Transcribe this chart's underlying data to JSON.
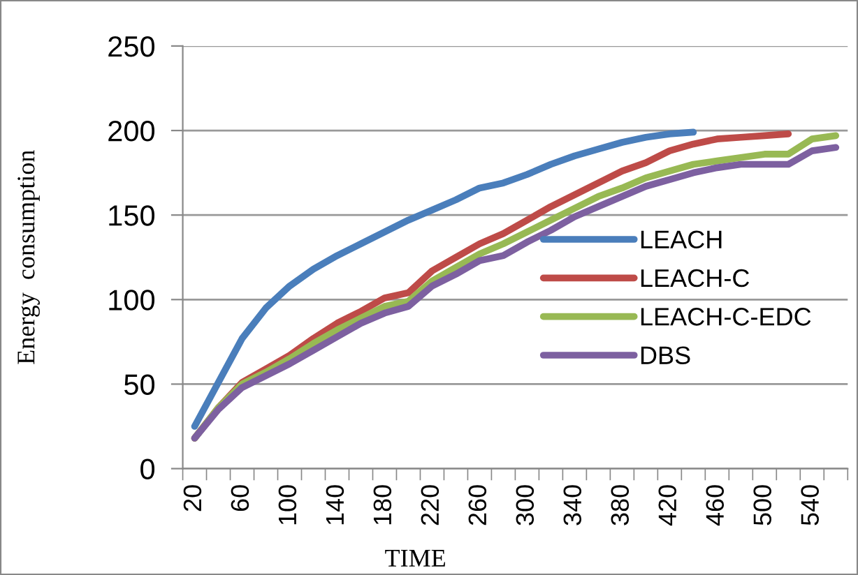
{
  "chart_data": {
    "type": "line",
    "xlabel": "TIME",
    "ylabel": "Energy  consumption",
    "categories": [
      "20",
      null,
      "60",
      null,
      "100",
      null,
      "140",
      null,
      "180",
      null,
      "220",
      null,
      "260",
      null,
      "300",
      null,
      "340",
      null,
      "380",
      null,
      "420",
      null,
      "460",
      null,
      "500",
      null,
      "540",
      null
    ],
    "series": [
      {
        "name": "LEACH",
        "color": "#4a7ebb",
        "values": [
          25,
          51,
          77,
          95,
          108,
          118,
          126,
          133,
          140,
          147,
          153,
          159,
          166,
          169,
          174,
          180,
          185,
          189,
          193,
          196,
          198,
          199,
          null,
          null,
          null,
          null,
          null,
          null
        ]
      },
      {
        "name": "LEACH-C",
        "color": "#be4b48",
        "values": [
          18,
          36,
          51,
          59,
          67,
          77,
          86,
          93,
          101,
          104,
          117,
          125,
          133,
          139,
          147,
          155,
          162,
          169,
          176,
          181,
          188,
          192,
          195,
          196,
          197,
          198,
          null,
          null
        ]
      },
      {
        "name": "LEACH-C-EDC",
        "color": "#98b954",
        "values": [
          18,
          36,
          50,
          57,
          65,
          74,
          82,
          89,
          96,
          99,
          111,
          119,
          127,
          133,
          140,
          147,
          154,
          161,
          166,
          172,
          176,
          180,
          182,
          184,
          186,
          186,
          195,
          197
        ]
      },
      {
        "name": "DBS",
        "color": "#7d60a0",
        "values": [
          18,
          35,
          48,
          55,
          62,
          70,
          78,
          86,
          92,
          96,
          108,
          115,
          123,
          126,
          134,
          141,
          149,
          155,
          161,
          167,
          171,
          175,
          178,
          180,
          180,
          180,
          188,
          190
        ]
      }
    ],
    "ylim": [
      0,
      250
    ],
    "yticks": [
      0,
      50,
      100,
      150,
      200,
      250
    ],
    "grid": "y",
    "legend": "right",
    "marker": "none",
    "line_style": "solid"
  }
}
